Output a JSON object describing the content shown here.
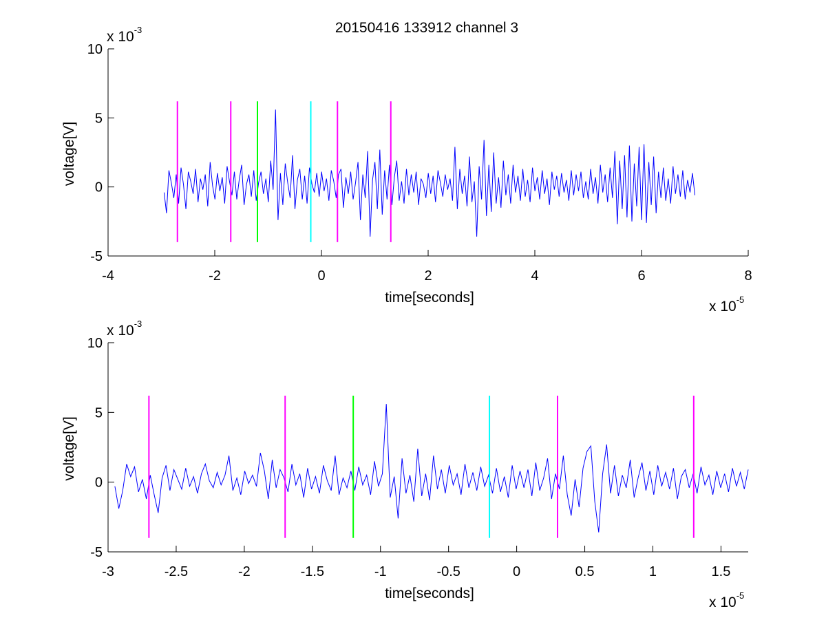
{
  "title": "20150416 133912 channel 3",
  "chart_data": [
    {
      "type": "line",
      "title": "20150416 133912 channel 3",
      "xlabel": "time[seconds]",
      "ylabel": "voltage[V]",
      "xlim": [
        -4e-05,
        8e-05
      ],
      "ylim": [
        -0.005,
        0.01
      ],
      "xticks": [
        -4e-05,
        -2e-05,
        0,
        2e-05,
        4e-05,
        6e-05,
        8e-05
      ],
      "xtick_labels": [
        "-4",
        "-2",
        "0",
        "2",
        "4",
        "6",
        "8"
      ],
      "yticks": [
        -0.005,
        0,
        0.005,
        0.01
      ],
      "ytick_labels": [
        "-5",
        "0",
        "5",
        "10"
      ],
      "x_multiplier_base": "x 10",
      "x_multiplier_exp": "-5",
      "y_multiplier_base": "x 10",
      "y_multiplier_exp": "-3",
      "grid": false,
      "signal": {
        "color": "#0000ff",
        "x_range": [
          -2.95e-05,
          7e-05
        ],
        "values_mV": [
          -0.4,
          -1.9,
          1.2,
          0.3,
          -0.8,
          0.9,
          -1.2,
          1.4,
          0.2,
          -1.6,
          1.1,
          0.4,
          -0.5,
          1.3,
          -1.1,
          0.6,
          -0.2,
          0.9,
          -1.4,
          1.8,
          0.1,
          -0.9,
          1.0,
          -0.3,
          0.7,
          -1.2,
          1.5,
          0.4,
          -0.6,
          1.1,
          -0.9,
          0.5,
          1.6,
          -1.3,
          0.2,
          0.9,
          -0.7,
          1.2,
          -1.0,
          0.3,
          1.1,
          -0.5,
          0.6,
          -1.1,
          1.9,
          -0.2,
          5.6,
          -2.4,
          1.0,
          -1.3,
          1.7,
          0.3,
          -0.8,
          2.3,
          -1.6,
          0.5,
          1.3,
          -0.9,
          0.8,
          -1.2,
          1.4,
          0.2,
          -0.4,
          1.0,
          -0.7,
          1.1,
          -0.3,
          0.6,
          -1.0,
          1.2,
          0.4,
          -0.8,
          0.9,
          1.3,
          -1.5,
          0.7,
          -0.5,
          1.1,
          -0.9,
          0.3,
          1.8,
          -2.4,
          0.9,
          -0.8,
          2.6,
          -3.6,
          0.5,
          1.8,
          -1.6,
          2.7,
          -2.0,
          1.2,
          -0.9,
          1.6,
          -1.3,
          0.7,
          1.9,
          -1.0,
          0.4,
          -1.2,
          1.3,
          -0.6,
          0.9,
          -0.4,
          1.1,
          -1.3,
          0.6,
          0.2,
          -0.8,
          1.0,
          -0.5,
          0.8,
          -1.1,
          1.2,
          0.3,
          -0.7,
          0.9,
          -0.2,
          0.6,
          -1.0,
          2.9,
          -1.6,
          1.3,
          -0.5,
          0.8,
          -1.4,
          2.2,
          -1.1,
          0.4,
          -3.6,
          1.5,
          -0.9,
          3.4,
          -2.1,
          1.6,
          -1.8,
          2.5,
          -1.2,
          0.7,
          -1.5,
          1.9,
          -0.6,
          0.9,
          -1.2,
          1.6,
          -0.4,
          0.8,
          -1.0,
          1.3,
          -0.7,
          0.5,
          -1.1,
          1.4,
          -0.3,
          0.7,
          -0.9,
          1.2,
          -0.5,
          0.6,
          -1.3,
          1.1,
          -0.2,
          0.8,
          -0.7,
          1.0,
          -0.4,
          0.5,
          -1.0,
          1.2,
          -0.6,
          0.9,
          -0.3,
          1.1,
          -0.8,
          0.4,
          -0.9,
          1.3,
          -0.5,
          0.7,
          -1.2,
          1.6,
          -0.4,
          0.9,
          -1.1,
          1.4,
          -0.8,
          2.6,
          -2.7,
          1.9,
          -1.6,
          2.3,
          -2.2,
          3.0,
          -2.5,
          1.7,
          -1.4,
          2.9,
          -2.4,
          3.1,
          -2.6,
          1.8,
          -1.3,
          2.2,
          -1.9,
          1.1,
          -0.8,
          1.4,
          -1.0,
          0.6,
          -1.2,
          1.5,
          -0.5,
          0.9,
          -0.7,
          1.2,
          -0.9,
          0.5,
          -0.4,
          1.0,
          -0.6
        ]
      },
      "markers": [
        {
          "x": -2.7e-05,
          "color": "#ff00ff"
        },
        {
          "x": -1.7e-05,
          "color": "#ff00ff"
        },
        {
          "x": -1.2e-05,
          "color": "#00ff00"
        },
        {
          "x": -2e-06,
          "color": "#00ffff"
        },
        {
          "x": 3e-06,
          "color": "#ff00ff"
        },
        {
          "x": 1.3e-05,
          "color": "#ff00ff"
        }
      ],
      "marker_ylim": [
        -0.004,
        0.0062
      ]
    },
    {
      "type": "line",
      "title": "",
      "xlabel": "time[seconds]",
      "ylabel": "voltage[V]",
      "xlim": [
        -3e-05,
        1.7e-05
      ],
      "ylim": [
        -0.005,
        0.01
      ],
      "xticks": [
        -3e-05,
        -2.5e-05,
        -2e-05,
        -1.5e-05,
        -1e-05,
        -5e-06,
        0,
        5e-06,
        1e-05,
        1.5e-05
      ],
      "xtick_labels": [
        "-3",
        "-2.5",
        "-2",
        "-1.5",
        "-1",
        "-0.5",
        "0",
        "0.5",
        "1",
        "1.5"
      ],
      "yticks": [
        -0.005,
        0,
        0.005,
        0.01
      ],
      "ytick_labels": [
        "-5",
        "0",
        "5",
        "10"
      ],
      "x_multiplier_base": "x 10",
      "x_multiplier_exp": "-5",
      "y_multiplier_base": "x 10",
      "y_multiplier_exp": "-3",
      "grid": false,
      "signal": {
        "color": "#0000ff",
        "x_range": [
          -2.95e-05,
          1.7e-05
        ],
        "values_mV": [
          -0.3,
          -1.9,
          -0.6,
          1.3,
          0.4,
          1.1,
          -0.7,
          0.2,
          -1.2,
          0.5,
          -0.9,
          -2.2,
          0.3,
          1.2,
          -0.6,
          0.9,
          0.2,
          -0.5,
          1.0,
          -0.3,
          0.4,
          -0.8,
          0.6,
          1.3,
          0.1,
          -0.4,
          0.7,
          -0.2,
          0.5,
          1.9,
          -0.6,
          0.3,
          -0.9,
          0.8,
          -0.1,
          0.5,
          -0.3,
          2.1,
          0.8,
          -1.2,
          1.6,
          -0.4,
          0.9,
          0.3,
          -0.7,
          1.3,
          -0.2,
          0.6,
          -1.1,
          1.0,
          -0.5,
          0.4,
          -0.8,
          1.2,
          0.1,
          -0.6,
          1.9,
          -0.9,
          0.3,
          -0.4,
          0.8,
          -0.6,
          1.1,
          -0.2,
          0.5,
          -0.9,
          1.5,
          -0.3,
          0.6,
          5.6,
          -1.1,
          0.4,
          -2.6,
          1.7,
          -0.8,
          0.5,
          -1.4,
          2.4,
          -1.0,
          0.6,
          -1.3,
          1.9,
          -0.5,
          0.9,
          -0.8,
          1.2,
          -0.2,
          0.6,
          -0.9,
          1.3,
          -0.4,
          0.7,
          -0.6,
          1.1,
          -0.3,
          0.5,
          -0.8,
          1.0,
          -0.7,
          0.4,
          -1.1,
          1.2,
          -0.5,
          0.8,
          -0.4,
          0.9,
          -1.0,
          1.4,
          -0.6,
          0.3,
          1.7,
          -1.2,
          0.6,
          -0.5,
          1.9,
          -0.9,
          -2.4,
          0.2,
          -1.8,
          1.0,
          2.2,
          2.6,
          -1.4,
          -3.6,
          0.6,
          2.7,
          -0.8,
          1.2,
          -1.0,
          0.5,
          -0.4,
          1.6,
          -1.1,
          0.3,
          1.4,
          -0.6,
          0.8,
          -0.9,
          1.2,
          -0.3,
          0.7,
          -0.5,
          1.0,
          -1.2,
          0.4,
          0.9,
          -0.4,
          0.6,
          -0.8,
          1.1,
          -0.2,
          0.5,
          -0.9,
          0.8,
          -0.4,
          0.6,
          -0.7,
          1.0,
          -0.3,
          0.7,
          -0.5,
          0.9
        ]
      },
      "markers": [
        {
          "x": -2.7e-05,
          "color": "#ff00ff"
        },
        {
          "x": -1.7e-05,
          "color": "#ff00ff"
        },
        {
          "x": -1.2e-05,
          "color": "#00ff00"
        },
        {
          "x": -2e-06,
          "color": "#00ffff"
        },
        {
          "x": 3e-06,
          "color": "#ff00ff"
        },
        {
          "x": 1.3e-05,
          "color": "#ff00ff"
        }
      ],
      "marker_ylim": [
        -0.004,
        0.0062
      ]
    }
  ]
}
